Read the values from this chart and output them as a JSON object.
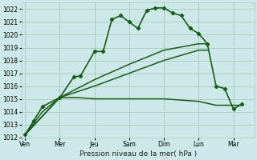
{
  "background_color": "#cce8e8",
  "grid_color": "#aaccbb",
  "line_color": "#1a5c1a",
  "xlabel": "Pression niveau de la mer( hPa )",
  "ylim": [
    1012,
    1022.5
  ],
  "yticks": [
    1012,
    1013,
    1014,
    1015,
    1016,
    1017,
    1018,
    1019,
    1020,
    1021,
    1022
  ],
  "day_labels": [
    "Ven",
    "Mer",
    "Jeu",
    "Sam",
    "Dim",
    "Lun",
    "Mar"
  ],
  "day_positions": [
    0,
    2,
    4,
    6,
    8,
    10,
    12
  ],
  "xlim": [
    -0.2,
    13.2
  ],
  "main_x": [
    0,
    0.5,
    1.0,
    2.0,
    2.8,
    3.2,
    4.0,
    4.5,
    5.0,
    5.5,
    6.0,
    6.5,
    7.0,
    7.5,
    8.0,
    8.5,
    9.0,
    9.5,
    10.0,
    10.5,
    11.0,
    11.5,
    12.0,
    12.5
  ],
  "main_y": [
    1012.2,
    1013.3,
    1014.4,
    1015.1,
    1016.7,
    1016.8,
    1018.7,
    1018.7,
    1021.2,
    1021.5,
    1021.0,
    1020.5,
    1021.9,
    1022.1,
    1022.1,
    1021.7,
    1021.5,
    1020.5,
    1020.1,
    1019.3,
    1016.0,
    1015.8,
    1014.2,
    1014.6
  ],
  "flat_x": [
    0,
    1.0,
    2.0,
    3.0,
    4.0,
    5.0,
    6.0,
    7.0,
    8.0,
    9.0,
    10.0,
    11.0,
    11.5,
    12.0,
    12.5
  ],
  "flat_y": [
    1012.2,
    1014.0,
    1015.1,
    1015.1,
    1015.0,
    1015.0,
    1015.0,
    1015.0,
    1015.0,
    1014.9,
    1014.8,
    1014.5,
    1014.5,
    1014.5,
    1014.5
  ],
  "rise1_x": [
    0,
    2.0,
    4.0,
    6.0,
    8.0,
    10.0,
    10.5
  ],
  "rise1_y": [
    1012.2,
    1015.1,
    1016.5,
    1017.7,
    1018.8,
    1019.3,
    1019.3
  ],
  "rise2_x": [
    0,
    2.0,
    4.0,
    6.0,
    8.0,
    10.0,
    10.5
  ],
  "rise2_y": [
    1012.2,
    1015.1,
    1016.0,
    1017.0,
    1018.0,
    1018.8,
    1018.8
  ]
}
